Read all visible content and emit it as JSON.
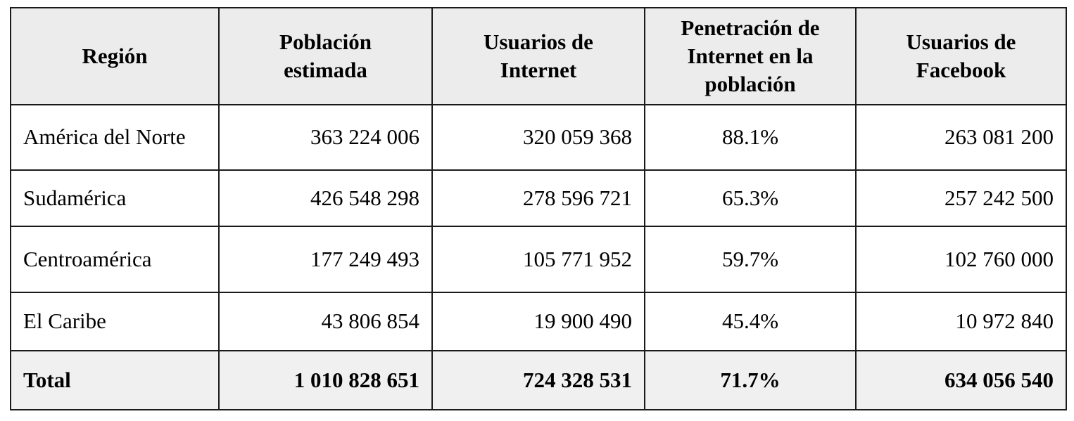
{
  "table": {
    "headers": [
      {
        "key": "region",
        "lines": [
          "Región"
        ]
      },
      {
        "key": "population",
        "lines": [
          "Población",
          "estimada"
        ]
      },
      {
        "key": "internet_users",
        "lines": [
          "Usuarios de",
          "Internet"
        ]
      },
      {
        "key": "penetration",
        "lines": [
          "Penetración de",
          "Internet en la",
          "población"
        ]
      },
      {
        "key": "facebook_users",
        "lines": [
          "Usuarios de",
          "Facebook"
        ]
      }
    ],
    "rows": [
      {
        "region": "América del Norte",
        "population": "363 224 006",
        "internet_users": "320 059 368",
        "penetration": "88.1%",
        "facebook_users": "263 081 200"
      },
      {
        "region": "Sudamérica",
        "population": "426 548 298",
        "internet_users": "278 596 721",
        "penetration": "65.3%",
        "facebook_users": "257 242 500"
      },
      {
        "region": "Centroamérica",
        "population": "177 249 493",
        "internet_users": "105 771 952",
        "penetration": "59.7%",
        "facebook_users": "102 760 000"
      },
      {
        "region": "El Caribe",
        "population": "43 806 854",
        "internet_users": "19 900 490",
        "penetration": "45.4%",
        "facebook_users": "10 972 840"
      }
    ],
    "total": {
      "region": "Total",
      "population": "1 010 828 651",
      "internet_users": "724 328 531",
      "penetration": "71.7%",
      "facebook_users": "634 056 540"
    }
  },
  "colors": {
    "header_background": "#ececec",
    "total_background": "#f0f0f0",
    "border": "#1a1a1a"
  }
}
